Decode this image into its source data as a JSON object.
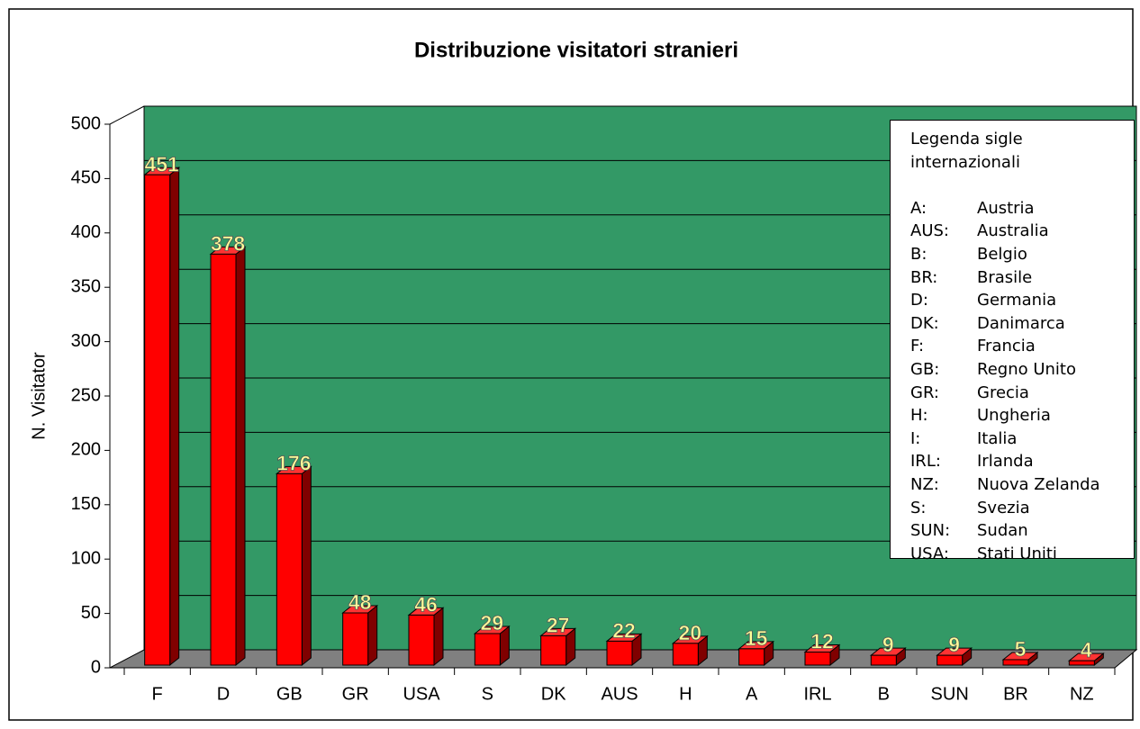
{
  "chart_data": {
    "type": "bar3d",
    "title": "Distribuzione visitatori stranieri",
    "y_label": "N. Visitator",
    "categories": [
      "F",
      "D",
      "GB",
      "GR",
      "USA",
      "S",
      "DK",
      "AUS",
      "H",
      "A",
      "IRL",
      "B",
      "SUN",
      "BR",
      "NZ"
    ],
    "values": [
      451,
      378,
      176,
      48,
      46,
      29,
      27,
      22,
      20,
      15,
      12,
      9,
      9,
      5,
      4
    ],
    "color": "#ff0000",
    "wall_color": "#339966",
    "floor_color": "#808080",
    "label_color": "#ffff99",
    "ylim": [
      0,
      500
    ],
    "yticks": [
      0,
      50,
      100,
      150,
      200,
      250,
      300,
      350,
      400,
      450,
      500
    ],
    "grid": true,
    "legend_box": {
      "title": "Legenda sigle internazionali",
      "entries": [
        [
          "A:",
          "Austria"
        ],
        [
          "AUS:",
          "Australia"
        ],
        [
          "B:",
          "Belgio"
        ],
        [
          "BR:",
          "Brasile"
        ],
        [
          "D:",
          "Germania"
        ],
        [
          "DK:",
          "Danimarca"
        ],
        [
          "F:",
          "Francia"
        ],
        [
          "GB:",
          "Regno Unito"
        ],
        [
          "GR:",
          "Grecia"
        ],
        [
          "H:",
          "Ungheria"
        ],
        [
          "I:",
          "Italia"
        ],
        [
          "IRL:",
          "Irlanda"
        ],
        [
          "NZ:",
          "Nuova Zelanda"
        ],
        [
          "S:",
          "Svezia"
        ],
        [
          "SUN:",
          "Sudan"
        ],
        [
          "USA:",
          "Stati Uniti"
        ]
      ]
    }
  }
}
